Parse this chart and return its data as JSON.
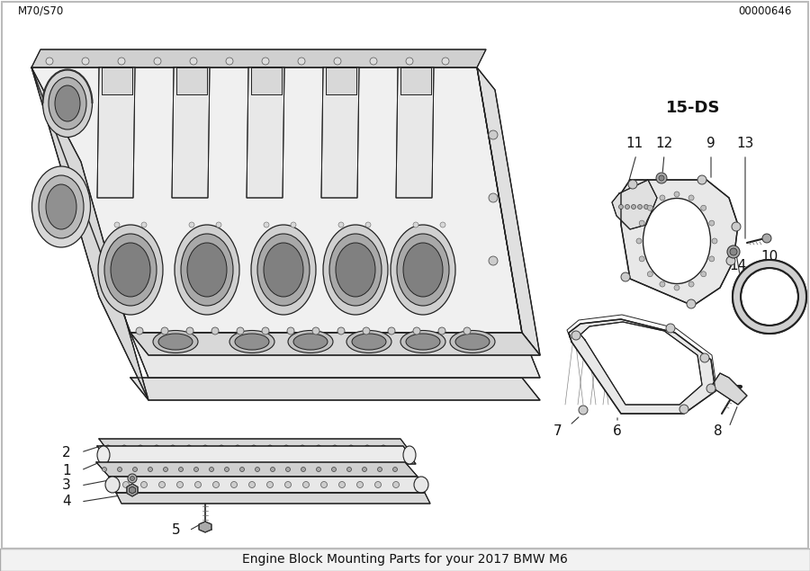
{
  "title": "Engine Block Mounting Parts for your 2017 BMW M6",
  "bg_color": "#ffffff",
  "fig_width": 9.0,
  "fig_height": 6.35,
  "dpi": 100,
  "bottom_left_text": "M70/S70",
  "bottom_right_text": "00000646",
  "center_code": "15-DS",
  "title_fontsize": 10,
  "label_fontsize": 11,
  "bold_label_fontsize": 13,
  "small_fontsize": 8.5,
  "code_fontsize": 13,
  "line_color": "#222222",
  "label_color": "#111111"
}
